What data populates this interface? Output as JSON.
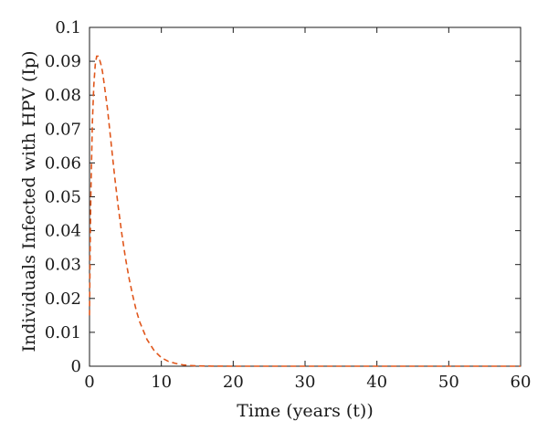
{
  "chart_data": {
    "type": "line",
    "title": "",
    "xlabel": "Time (years (t))",
    "ylabel": "Individuals Infected with HPV (Ip)",
    "xlim": [
      0,
      60
    ],
    "ylim": [
      0,
      0.1
    ],
    "x_ticks": [
      0,
      10,
      20,
      30,
      40,
      50,
      60
    ],
    "x_tick_labels": [
      "0",
      "10",
      "20",
      "30",
      "40",
      "50",
      "60"
    ],
    "y_ticks": [
      0,
      0.01,
      0.02,
      0.03,
      0.04,
      0.05,
      0.06,
      0.07,
      0.08,
      0.09,
      0.1
    ],
    "y_tick_labels": [
      "0",
      "0.01",
      "0.02",
      "0.03",
      "0.04",
      "0.05",
      "0.06",
      "0.07",
      "0.08",
      "0.09",
      "0.1"
    ],
    "grid": false,
    "legend": "none",
    "series": [
      {
        "color": "#e0561b",
        "line_style": "dashed",
        "x": [
          0,
          0.1,
          0.2,
          0.4,
          0.6,
          0.8,
          1.0,
          1.2,
          1.4,
          1.6,
          1.8,
          2.0,
          2.5,
          3.0,
          3.5,
          4.0,
          4.5,
          5.0,
          5.5,
          6.0,
          6.5,
          7.0,
          8.0,
          9.0,
          10.0,
          11.0,
          12.0,
          13.0,
          14.0,
          15.0,
          17.0,
          20.0,
          25.0,
          30.0,
          40.0,
          50.0,
          60.0
        ],
        "y": [
          0.015,
          0.036,
          0.052,
          0.072,
          0.083,
          0.089,
          0.0915,
          0.0915,
          0.0905,
          0.089,
          0.087,
          0.084,
          0.076,
          0.066,
          0.056,
          0.047,
          0.039,
          0.032,
          0.026,
          0.021,
          0.0165,
          0.013,
          0.0079,
          0.0046,
          0.0025,
          0.0014,
          0.0008,
          0.0004,
          0.0002,
          0.0001,
          3e-05,
          0,
          0,
          0,
          0,
          0,
          0
        ]
      }
    ]
  }
}
